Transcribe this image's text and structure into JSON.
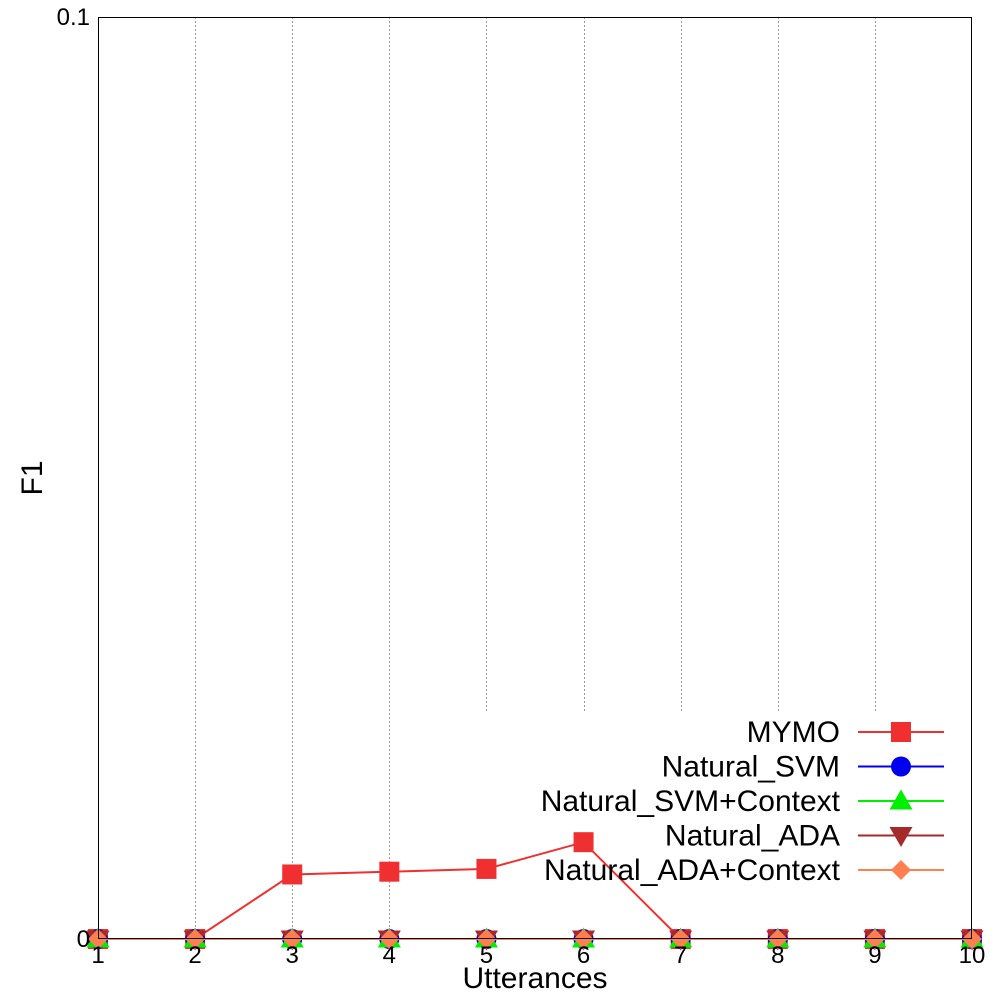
{
  "chart_data": {
    "type": "line",
    "title": "",
    "xlabel": "Utterances",
    "ylabel": "F1",
    "x": [
      1,
      2,
      3,
      4,
      5,
      6,
      7,
      8,
      9,
      10
    ],
    "xlim": [
      1,
      10
    ],
    "ylim": [
      0,
      0.1
    ],
    "x_tick_labels": [
      "1",
      "2",
      "3",
      "4",
      "5",
      "6",
      "7",
      "8",
      "9",
      "10"
    ],
    "y_tick_labels": [
      "0",
      "0.1"
    ],
    "y_ticks": [
      0,
      0.1
    ],
    "grid": "vertical",
    "legend_position": "bottom-right",
    "series": [
      {
        "name": "MYMO",
        "color": "#f03030",
        "marker": "square",
        "values": [
          0,
          0,
          0.007,
          0.0073,
          0.0076,
          0.0105,
          0,
          0,
          0,
          0
        ]
      },
      {
        "name": "Natural_SVM",
        "color": "#0000ee",
        "marker": "circle",
        "values": [
          0,
          0,
          0,
          0,
          0,
          0,
          0,
          0,
          0,
          0
        ]
      },
      {
        "name": "Natural_SVM+Context",
        "color": "#00ee00",
        "marker": "triangle-up",
        "values": [
          0,
          0,
          0,
          0,
          0,
          0,
          0,
          0,
          0,
          0
        ]
      },
      {
        "name": "Natural_ADA",
        "color": "#a52a2a",
        "marker": "triangle-down",
        "values": [
          0,
          0,
          0,
          0,
          0,
          0,
          0,
          0,
          0,
          0
        ]
      },
      {
        "name": "Natural_ADA+Context",
        "color": "#ff7f50",
        "marker": "diamond",
        "values": [
          0,
          0,
          0,
          0,
          0,
          0,
          0,
          0,
          0,
          0
        ]
      }
    ]
  }
}
